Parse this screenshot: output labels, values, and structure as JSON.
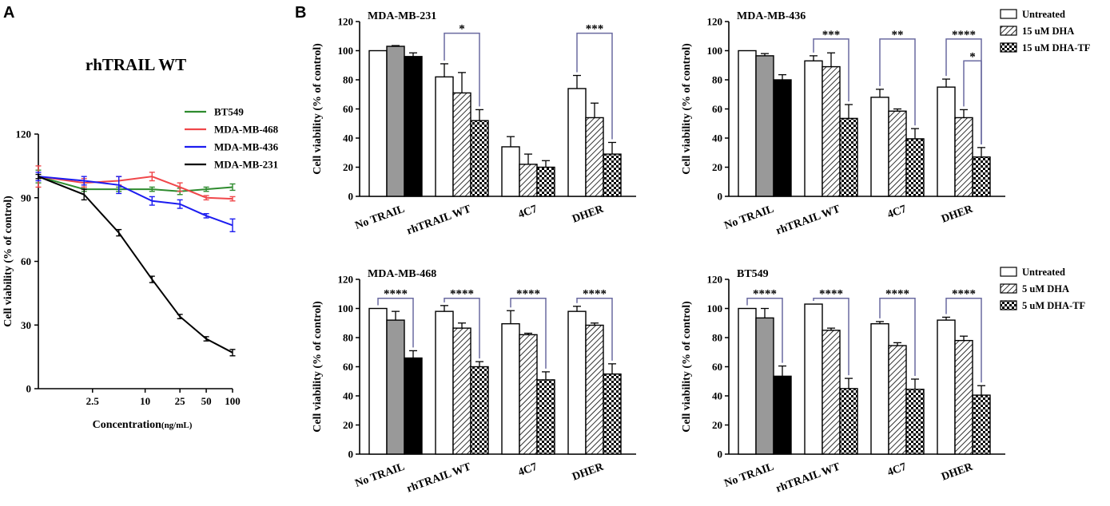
{
  "colors": {
    "bt549": "#2e8b2e",
    "mda468": "#f0474a",
    "mda436": "#1c1cf0",
    "mda231": "#000000",
    "untreated_fill": "#ffffff",
    "first_group_mid": "#999999",
    "first_group_dark": "#000000",
    "bracket": "#6a6aa0"
  },
  "chart_data": [
    {
      "panel": "A",
      "type": "line",
      "title": "rhTRAIL WT",
      "xlabel": "Concentration",
      "xlabel_unit": "(ng/mL)",
      "ylabel": "Cell viability (% of control)",
      "ylim": [
        0,
        120
      ],
      "yticks": [
        "0",
        "30",
        "60",
        "90",
        "120"
      ],
      "x_scale": "log",
      "xticks": [
        "2.5",
        "10",
        "25",
        "50",
        "100"
      ],
      "x": [
        0.6,
        2,
        5,
        12,
        25,
        50,
        100
      ],
      "series": [
        {
          "name": "BT549",
          "color_key": "bt549",
          "values": [
            100,
            94,
            94,
            94,
            93,
            94,
            95
          ],
          "err": [
            3,
            1,
            1,
            1,
            1.5,
            1,
            1.5
          ]
        },
        {
          "name": "MDA-MB-468",
          "color_key": "mda468",
          "values": [
            100,
            97,
            98,
            100,
            95,
            90,
            89.5
          ],
          "err": [
            5,
            2,
            2,
            2,
            2,
            1,
            1
          ]
        },
        {
          "name": "MDA-MB-436",
          "color_key": "mda436",
          "values": [
            100,
            98,
            96,
            88.5,
            87,
            81.5,
            77
          ],
          "err": [
            2,
            2,
            4,
            2,
            2,
            1,
            3
          ]
        },
        {
          "name": "MDA-MB-231",
          "color_key": "mda231",
          "values": [
            100,
            91.5,
            73.5,
            51.5,
            34,
            23.5,
            17
          ],
          "err": [
            1,
            2.5,
            1.5,
            1.5,
            1,
            1,
            1.5
          ]
        }
      ]
    },
    {
      "panel": "B",
      "type": "bar",
      "title": "MDA-MB-231",
      "ylabel": "Cell viability (% of control)",
      "ylim": [
        0,
        120
      ],
      "yticks": [
        "0",
        "20",
        "40",
        "60",
        "80",
        "100",
        "120"
      ],
      "categories": [
        "No TRAIL",
        "rhTRAIL WT",
        "4C7",
        "DHER"
      ],
      "series_names": [
        "Untreated",
        "15 uM DHA",
        "15 uM DHA-TF"
      ],
      "values": [
        [
          100,
          103,
          96
        ],
        [
          82,
          71,
          52
        ],
        [
          34,
          22,
          20
        ],
        [
          74,
          54,
          29
        ]
      ],
      "err": [
        [
          0,
          0.5,
          2.5
        ],
        [
          9,
          14,
          7.5
        ],
        [
          7,
          7,
          4.5
        ],
        [
          9,
          10,
          8
        ]
      ],
      "significance": [
        {
          "cat": 1,
          "from": 0,
          "to": 2,
          "label": "*",
          "level": 112
        },
        {
          "cat": 3,
          "from": 0,
          "to": 2,
          "label": "***",
          "level": 112
        }
      ]
    },
    {
      "panel": "B",
      "type": "bar",
      "title": "MDA-MB-436",
      "ylabel": "Cell viability (% of control)",
      "ylim": [
        0,
        120
      ],
      "yticks": [
        "0",
        "20",
        "40",
        "60",
        "80",
        "100",
        "120"
      ],
      "categories": [
        "No TRAIL",
        "rhTRAIL WT",
        "4C7",
        "DHER"
      ],
      "series_names": [
        "Untreated",
        "15 uM DHA",
        "15 uM DHA-TF"
      ],
      "values": [
        [
          100,
          96.5,
          80
        ],
        [
          93,
          89,
          53.5
        ],
        [
          68,
          58.5,
          39.5
        ],
        [
          75,
          54,
          27
        ]
      ],
      "err": [
        [
          0,
          1.5,
          3.5
        ],
        [
          3.5,
          9.5,
          9.5
        ],
        [
          5.5,
          1.5,
          7
        ],
        [
          5.5,
          5.5,
          6.5
        ]
      ],
      "significance": [
        {
          "cat": 1,
          "from": 0,
          "to": 2,
          "label": "***",
          "level": 108
        },
        {
          "cat": 2,
          "from": 0,
          "to": 2,
          "label": "**",
          "level": 108
        },
        {
          "cat": 3,
          "from": 1,
          "to": 2,
          "label": "*",
          "level": 93
        },
        {
          "cat": 3,
          "from": 0,
          "to": 2,
          "label": "****",
          "level": 108
        }
      ],
      "legend": [
        "Untreated",
        "15 uM DHA",
        "15 uM DHA-TF"
      ]
    },
    {
      "panel": "B",
      "type": "bar",
      "title": "MDA-MB-468",
      "ylabel": "Cell viability (% of control)",
      "ylim": [
        0,
        120
      ],
      "yticks": [
        "0",
        "20",
        "40",
        "60",
        "80",
        "100",
        "120"
      ],
      "categories": [
        "No TRAIL",
        "rhTRAIL WT",
        "4C7",
        "DHER"
      ],
      "series_names": [
        "Untreated",
        "5 uM DHA",
        "5 uM DHA-TF"
      ],
      "values": [
        [
          100,
          92,
          66
        ],
        [
          98,
          86.5,
          60
        ],
        [
          89.5,
          82,
          51
        ],
        [
          98,
          88.5,
          55
        ]
      ],
      "err": [
        [
          0,
          6,
          5
        ],
        [
          4,
          3.5,
          3.5
        ],
        [
          9,
          1,
          5.5
        ],
        [
          3.5,
          1.5,
          7
        ]
      ],
      "significance": [
        {
          "cat": 0,
          "from": 0,
          "to": 2,
          "label": "****",
          "level": 107
        },
        {
          "cat": 1,
          "from": 0,
          "to": 2,
          "label": "****",
          "level": 107
        },
        {
          "cat": 2,
          "from": 0,
          "to": 2,
          "label": "****",
          "level": 107
        },
        {
          "cat": 3,
          "from": 0,
          "to": 2,
          "label": "****",
          "level": 107
        }
      ]
    },
    {
      "panel": "B",
      "type": "bar",
      "title": "BT549",
      "ylabel": "Cell viability (% of control)",
      "ylim": [
        0,
        120
      ],
      "yticks": [
        "0",
        "20",
        "40",
        "60",
        "80",
        "100",
        "120"
      ],
      "categories": [
        "No TRAIL",
        "rhTRAIL WT",
        "4C7",
        "DHER"
      ],
      "series_names": [
        "Untreated",
        "5 uM DHA",
        "5 uM DHA-TF"
      ],
      "values": [
        [
          100,
          93.5,
          53.5
        ],
        [
          103,
          85,
          45
        ],
        [
          89.5,
          74.5,
          44.5
        ],
        [
          92,
          78,
          40.5
        ]
      ],
      "err": [
        [
          0,
          6.5,
          7
        ],
        [
          0,
          1.5,
          7
        ],
        [
          1.5,
          2,
          7
        ],
        [
          2,
          3,
          6.5
        ]
      ],
      "significance": [
        {
          "cat": 0,
          "from": 0,
          "to": 2,
          "label": "****",
          "level": 107
        },
        {
          "cat": 1,
          "from": 0,
          "to": 2,
          "label": "****",
          "level": 107
        },
        {
          "cat": 2,
          "from": 0,
          "to": 2,
          "label": "****",
          "level": 107
        },
        {
          "cat": 3,
          "from": 0,
          "to": 2,
          "label": "****",
          "level": 107
        }
      ],
      "legend": [
        "Untreated",
        "5 uM DHA",
        "5 uM DHA-TF"
      ]
    }
  ],
  "panel_labels": {
    "a": "A",
    "b": "B"
  }
}
